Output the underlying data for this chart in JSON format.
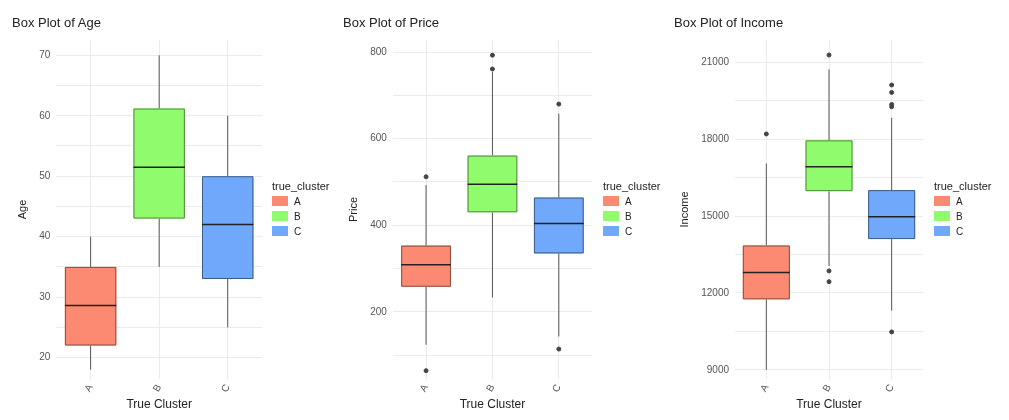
{
  "chart_data": [
    {
      "type": "box",
      "title": "Box Plot of Age",
      "xlabel": "True Cluster",
      "ylabel": "Age",
      "legend_title": "true_cluster",
      "legend": "right",
      "grid": true,
      "categories": [
        "A",
        "B",
        "C"
      ],
      "ylim": [
        16.4,
        72.6
      ],
      "yticks": [
        20,
        {
          "value": 25,
          "label": null
        },
        30,
        {
          "value": 35,
          "label": null
        },
        40,
        {
          "value": 45,
          "label": null
        },
        50,
        {
          "value": 55,
          "label": null
        },
        60,
        {
          "value": 65,
          "label": null
        },
        70
      ],
      "series": [
        {
          "name": "A",
          "color": "#fc8a72",
          "boxes": [
            {
              "low": 18,
              "q1": 22,
              "median": 28.6,
              "q3": 35,
              "high": 40
            },
            null,
            null
          ]
        },
        {
          "name": "B",
          "color": "#90fb6c",
          "boxes": [
            null,
            {
              "low": 35,
              "q1": 43,
              "median": 51.5,
              "q3": 61.2,
              "high": 70
            },
            null
          ]
        },
        {
          "name": "C",
          "color": "#70a9fb",
          "boxes": [
            null,
            null,
            {
              "low": 25,
              "q1": 33,
              "median": 42,
              "q3": 50,
              "high": 60
            }
          ]
        }
      ]
    },
    {
      "type": "box",
      "title": "Box Plot of Price",
      "xlabel": "True Cluster",
      "ylabel": "Price",
      "legend_title": "true_cluster",
      "legend": "right",
      "grid": true,
      "categories": [
        "A",
        "B",
        "C"
      ],
      "ylim": [
        44,
        829
      ],
      "yticks": [
        {
          "value": 100,
          "label": null
        },
        200,
        {
          "value": 300,
          "label": null
        },
        400,
        {
          "value": 500,
          "label": null
        },
        600,
        {
          "value": 700,
          "label": null
        },
        800
      ],
      "series": [
        {
          "name": "A",
          "color": "#fc8a72",
          "boxes": [
            {
              "low": 124,
              "q1": 258,
              "median": 309,
              "q3": 353,
              "high": 493,
              "outliers": [
                64,
                512
              ]
            },
            null,
            null
          ]
        },
        {
          "name": "B",
          "color": "#90fb6c",
          "boxes": [
            null,
            {
              "low": 233,
              "q1": 430,
              "median": 495,
              "q3": 561,
              "high": 754,
              "outliers": [
                761,
                793
              ]
            },
            null
          ]
        },
        {
          "name": "C",
          "color": "#70a9fb",
          "boxes": [
            null,
            null,
            {
              "low": 143,
              "q1": 335,
              "median": 404,
              "q3": 464,
              "high": 658,
              "outliers": [
                114,
                680
              ]
            }
          ]
        }
      ]
    },
    {
      "type": "box",
      "title": "Box Plot of Income",
      "xlabel": "True Cluster",
      "ylabel": "Income",
      "legend_title": "true_cluster",
      "legend": "right",
      "grid": true,
      "categories": [
        "A",
        "B",
        "C"
      ],
      "ylim": [
        8630,
        21880
      ],
      "yticks": [
        9000,
        {
          "value": 10500,
          "label": null
        },
        12000,
        {
          "value": 13500,
          "label": null
        },
        15000,
        {
          "value": 16500,
          "label": null
        },
        18000,
        {
          "value": 19500,
          "label": null
        },
        21000
      ],
      "series": [
        {
          "name": "A",
          "color": "#fc8a72",
          "boxes": [
            {
              "low": 9000,
              "q1": 11750,
              "median": 12800,
              "q3": 13850,
              "high": 17050,
              "outliers": [
                18200
              ]
            },
            null,
            null
          ]
        },
        {
          "name": "B",
          "color": "#90fb6c",
          "boxes": [
            null,
            {
              "low": 13050,
              "q1": 15970,
              "median": 16920,
              "q3": 17950,
              "high": 20720,
              "outliers": [
                12440,
                12860,
                21280
              ]
            },
            null
          ]
        },
        {
          "name": "C",
          "color": "#70a9fb",
          "boxes": [
            null,
            null,
            {
              "low": 11310,
              "q1": 14100,
              "median": 14970,
              "q3": 16010,
              "high": 18830,
              "outliers": [
                10480,
                19260,
                19350,
                19820,
                20110
              ]
            }
          ]
        }
      ]
    }
  ]
}
